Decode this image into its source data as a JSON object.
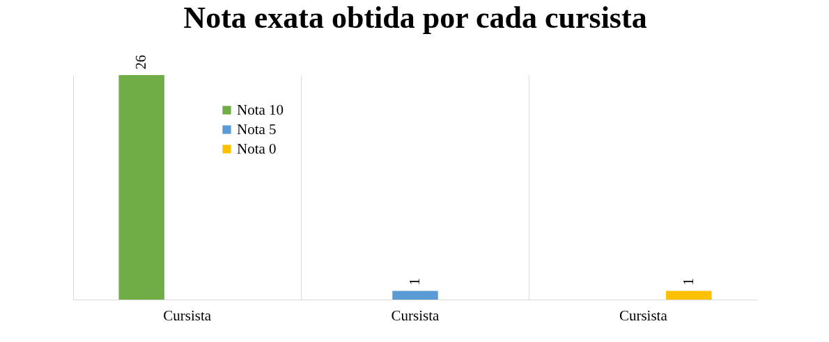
{
  "chart_data": {
    "type": "bar",
    "title": "Nota exata obtida por cada cursista",
    "categories": [
      "Cursista",
      "Cursista",
      "Cursista"
    ],
    "series": [
      {
        "name": "Nota 10",
        "color": "#70ad47",
        "values": [
          26,
          null,
          null
        ]
      },
      {
        "name": "Nota 5",
        "color": "#5b9bd5",
        "values": [
          null,
          1,
          null
        ]
      },
      {
        "name": "Nota 0",
        "color": "#ffc000",
        "values": [
          null,
          null,
          1
        ]
      }
    ],
    "data_labels": true,
    "grid": "x",
    "legend": "top left"
  }
}
